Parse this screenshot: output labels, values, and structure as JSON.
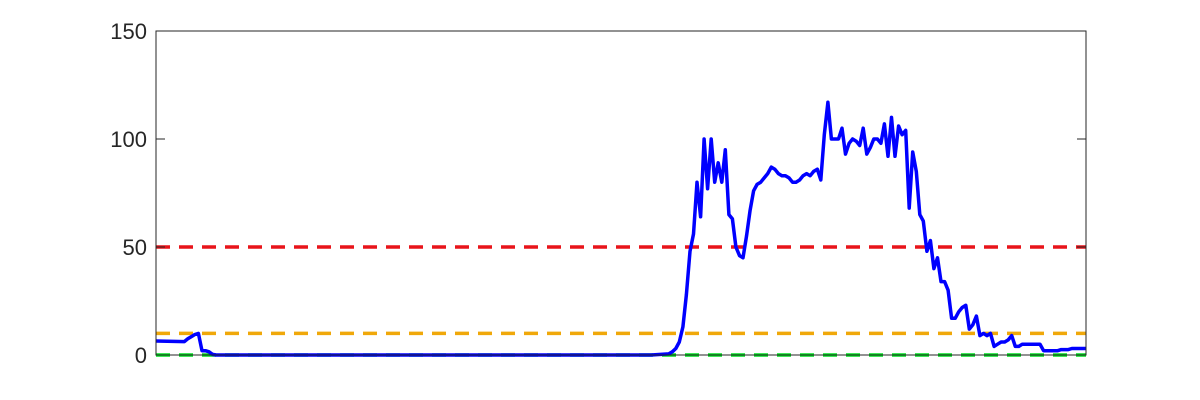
{
  "chart_data": {
    "type": "line",
    "title": "",
    "xlabel": "",
    "ylabel": "",
    "xlim": [
      0,
      263
    ],
    "ylim": [
      0,
      150
    ],
    "yticks": [
      0,
      50,
      100,
      150
    ],
    "ytick_labels": [
      "0",
      "50",
      "100",
      "150"
    ],
    "grid": false,
    "legend": "none",
    "series": [
      {
        "color": "#0000ff",
        "style": "solid",
        "x": [
          0,
          8,
          9,
          10,
          11,
          12,
          13,
          14,
          15,
          16,
          17,
          18,
          20,
          22,
          24,
          26,
          30,
          40,
          60,
          80,
          100,
          120,
          125,
          128,
          130,
          140,
          145,
          146,
          147,
          148,
          149,
          150,
          151,
          152,
          153,
          154,
          155,
          156,
          157,
          158,
          159,
          160,
          161,
          162,
          163,
          164,
          165,
          166,
          167,
          168,
          169,
          170,
          171,
          172,
          173,
          174,
          175,
          176,
          177,
          178,
          179,
          180,
          181,
          182,
          183,
          184,
          185,
          186,
          187,
          188,
          189,
          190,
          191,
          192,
          193,
          194,
          195,
          196,
          197,
          198,
          199,
          200,
          201,
          202,
          203,
          204,
          205,
          206,
          207,
          208,
          209,
          210,
          211,
          212,
          213,
          214,
          215,
          216,
          217,
          218,
          219,
          220,
          221,
          222,
          223,
          224,
          225,
          226,
          227,
          228,
          229,
          230,
          231,
          232,
          233,
          234,
          235,
          236,
          237,
          238,
          239,
          240,
          241,
          242,
          243,
          244,
          245,
          246,
          247,
          248,
          249,
          250,
          251,
          252,
          253,
          254,
          255,
          256,
          257,
          258,
          259,
          260,
          261,
          262,
          263
        ],
        "y": [
          6.5,
          6.2,
          7.5,
          8.5,
          9.5,
          10,
          2,
          2,
          1.5,
          0.3,
          0,
          0,
          0,
          0,
          0,
          0,
          0,
          0,
          0,
          0,
          0,
          0,
          0,
          0,
          0,
          0,
          0.5,
          1.5,
          3,
          6,
          13,
          28,
          48,
          56,
          80,
          64,
          100,
          77,
          100,
          80,
          89,
          80,
          95,
          65,
          63,
          50,
          46,
          45,
          55,
          67,
          76,
          79,
          80,
          82,
          84,
          87,
          86,
          84,
          83,
          83,
          82,
          80,
          80,
          81,
          83,
          84,
          83,
          85,
          86,
          81,
          102,
          117,
          100,
          100,
          100,
          105,
          93,
          98,
          100,
          99,
          97,
          105,
          93,
          96,
          100,
          100,
          98,
          107,
          92,
          110,
          92,
          106,
          102,
          104,
          68,
          94,
          85,
          65,
          62,
          48,
          53,
          40,
          45,
          34,
          34,
          30,
          17,
          17,
          20,
          22,
          23,
          12,
          14,
          18,
          9,
          10,
          9,
          10,
          4,
          5,
          6,
          6,
          7,
          9,
          4,
          4,
          5,
          5,
          5,
          5,
          5,
          5,
          2,
          2,
          2,
          2,
          2,
          2.5,
          2.5,
          2.5,
          3,
          3,
          3,
          3,
          3
        ]
      },
      {
        "color": "#e8141a",
        "style": "dashed",
        "x": [
          0,
          263
        ],
        "y": [
          50,
          50
        ]
      },
      {
        "color": "#f0a80a",
        "style": "dashed",
        "x": [
          0,
          263
        ],
        "y": [
          10,
          10
        ]
      },
      {
        "color": "#00e020",
        "style": "dashed",
        "x": [
          0,
          263
        ],
        "y": [
          0,
          0
        ]
      }
    ]
  }
}
